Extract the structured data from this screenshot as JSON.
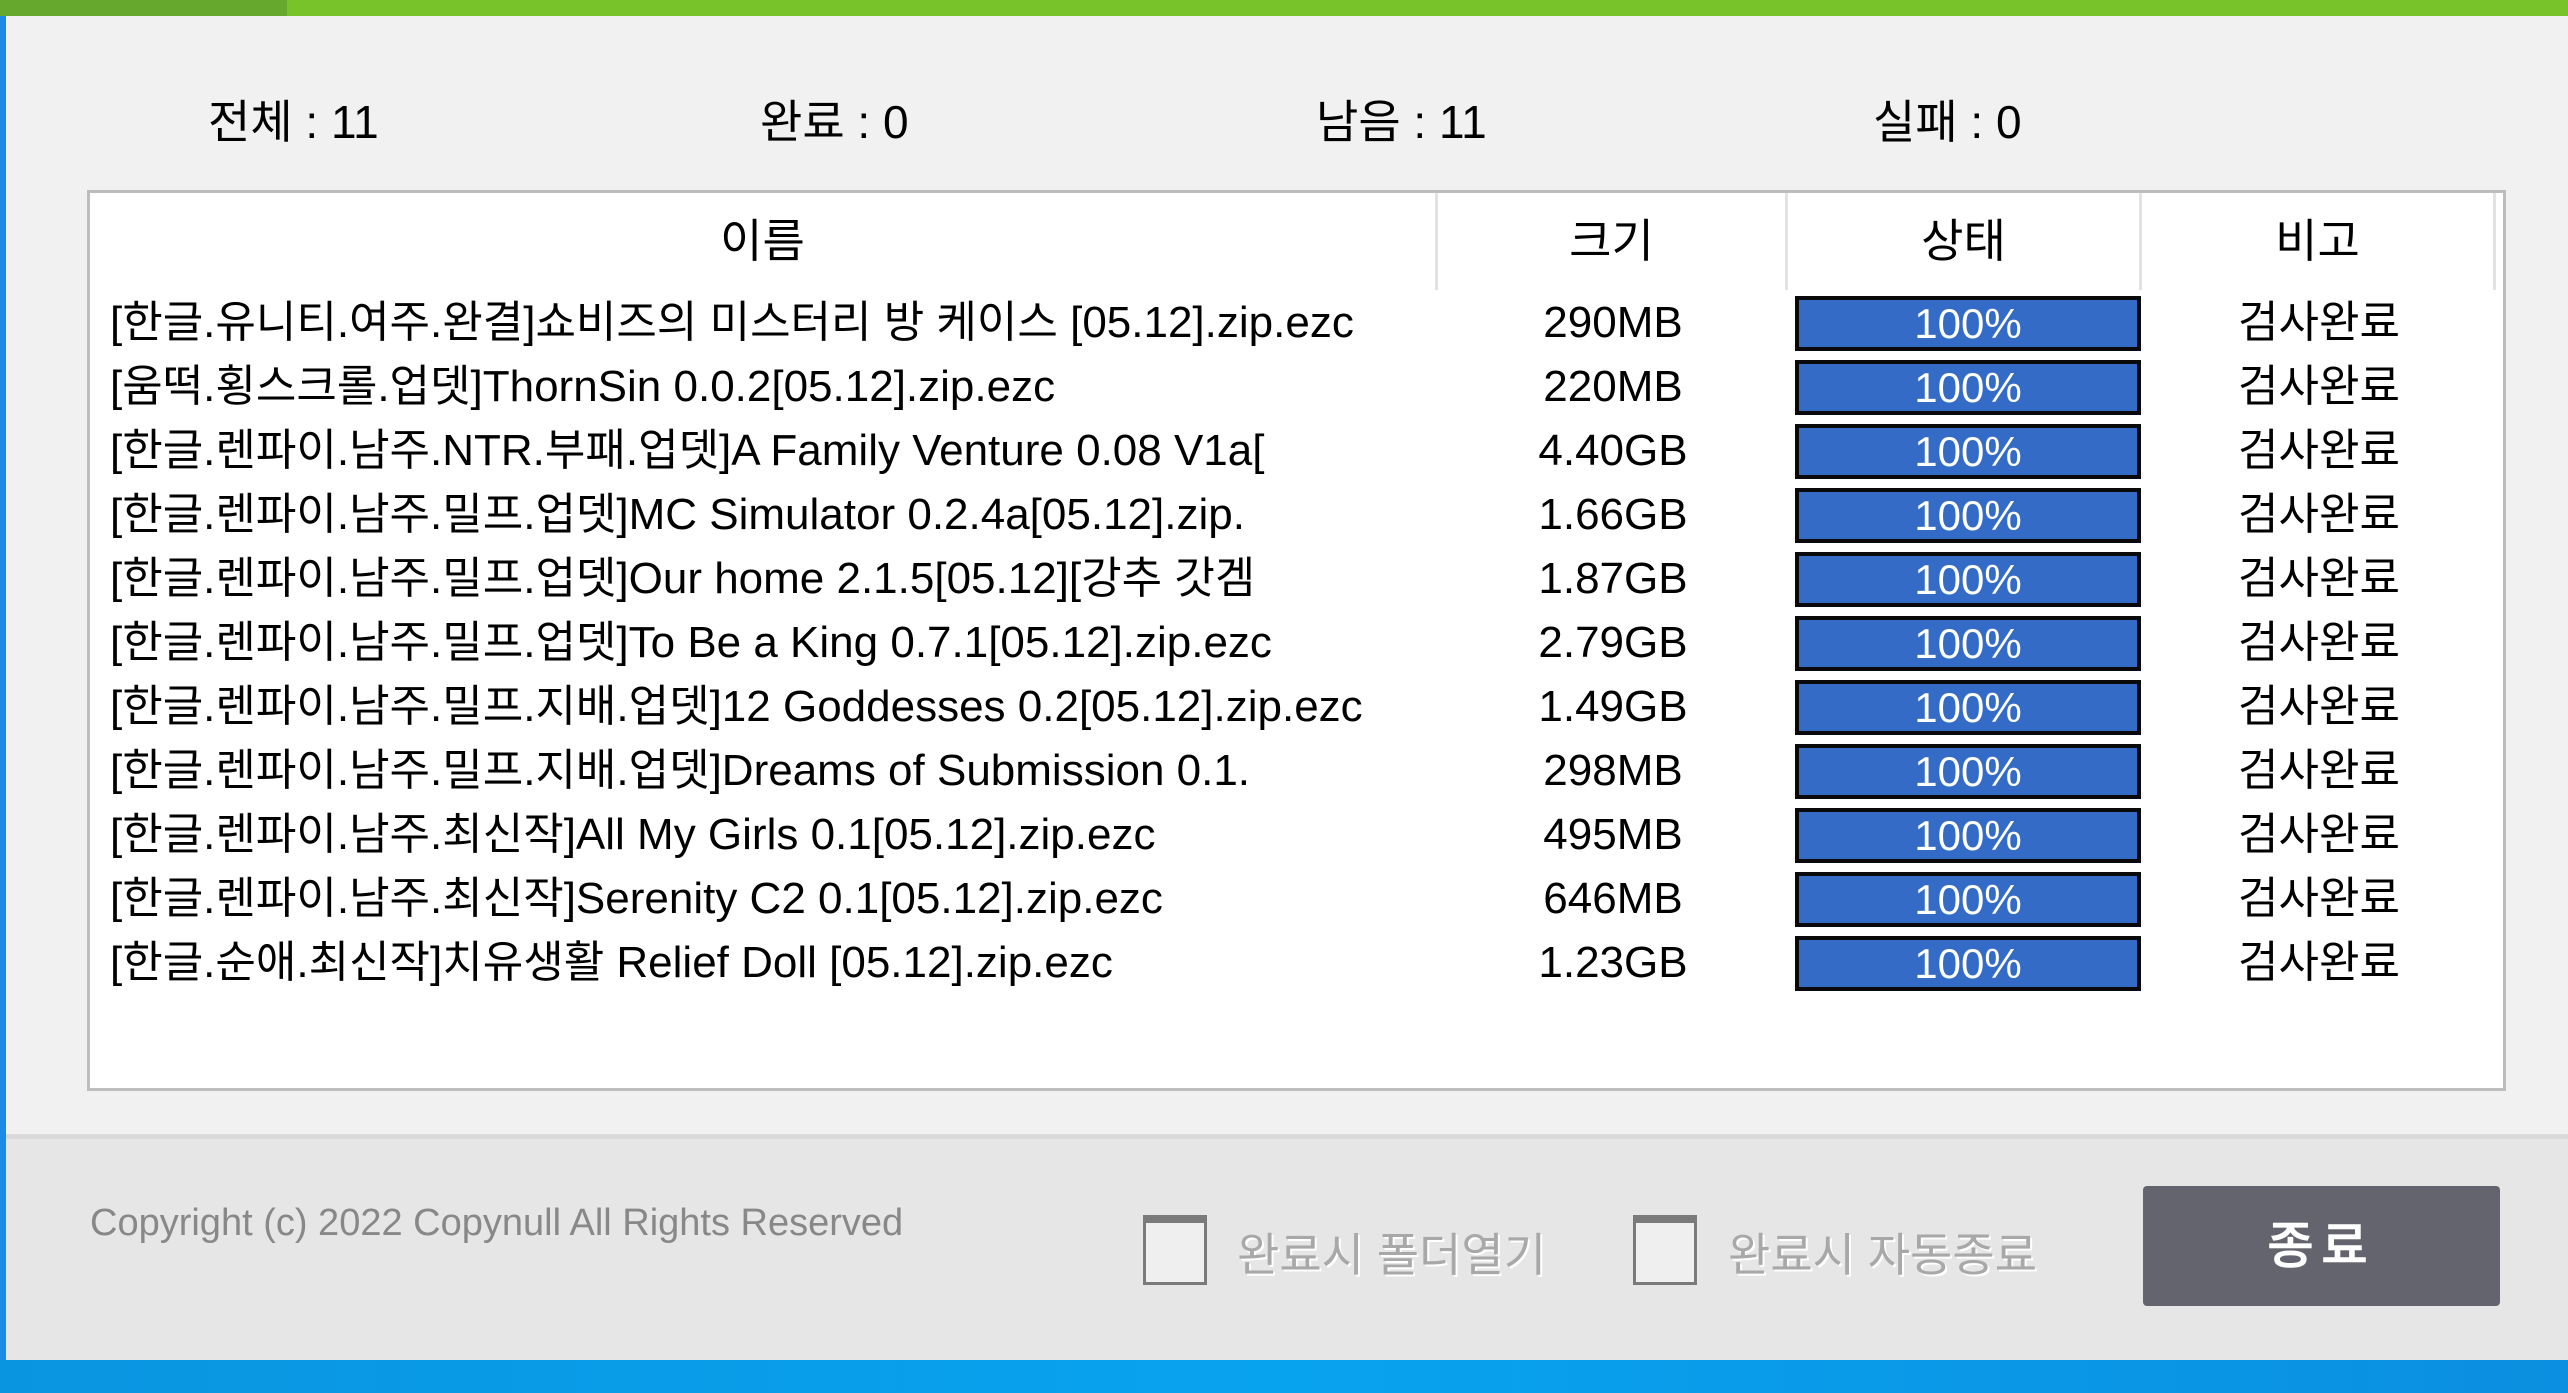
{
  "progress": {
    "overall_percent": 100,
    "accent": "#78c22a"
  },
  "stats": {
    "total": "전체 : 11",
    "done": "완료 : 0",
    "remaining": "남음 : 11",
    "failed": "실패 : 0"
  },
  "table": {
    "columns": [
      "이름",
      "크기",
      "상태",
      "비고"
    ],
    "rows": [
      {
        "name": "[한글.유니티.여주.완결]쇼비즈의 미스터리 방 케이스 [05.12].zip.ezc",
        "size": "290MB",
        "status": "100%",
        "percent": 100,
        "note": "검사완료"
      },
      {
        "name": "[움떡.횡스크롤.업뎃]ThornSin 0.0.2[05.12].zip.ezc",
        "size": "220MB",
        "status": "100%",
        "percent": 100,
        "note": "검사완료"
      },
      {
        "name": "[한글.렌파이.남주.NTR.부패.업뎃]A Family Venture 0.08 V1a[",
        "size": "4.40GB",
        "status": "100%",
        "percent": 100,
        "note": "검사완료"
      },
      {
        "name": "[한글.렌파이.남주.밀프.업뎃]MC Simulator 0.2.4a[05.12].zip.",
        "size": "1.66GB",
        "status": "100%",
        "percent": 100,
        "note": "검사완료"
      },
      {
        "name": "[한글.렌파이.남주.밀프.업뎃]Our home 2.1.5[05.12][강추 갓겜",
        "size": "1.87GB",
        "status": "100%",
        "percent": 100,
        "note": "검사완료"
      },
      {
        "name": "[한글.렌파이.남주.밀프.업뎃]To Be a King 0.7.1[05.12].zip.ezc",
        "size": "2.79GB",
        "status": "100%",
        "percent": 100,
        "note": "검사완료"
      },
      {
        "name": "[한글.렌파이.남주.밀프.지배.업뎃]12 Goddesses 0.2[05.12].zip.ezc",
        "size": "1.49GB",
        "status": "100%",
        "percent": 100,
        "note": "검사완료"
      },
      {
        "name": "[한글.렌파이.남주.밀프.지배.업뎃]Dreams of Submission 0.1.",
        "size": "298MB",
        "status": "100%",
        "percent": 100,
        "note": "검사완료"
      },
      {
        "name": "[한글.렌파이.남주.최신작]All My Girls 0.1[05.12].zip.ezc",
        "size": "495MB",
        "status": "100%",
        "percent": 100,
        "note": "검사완료"
      },
      {
        "name": "[한글.렌파이.남주.최신작]Serenity C2 0.1[05.12].zip.ezc",
        "size": "646MB",
        "status": "100%",
        "percent": 100,
        "note": "검사완료"
      },
      {
        "name": "[한글.순애.최신작]치유생활 Relief Doll [05.12].zip.ezc",
        "size": "1.23GB",
        "status": "100%",
        "percent": 100,
        "note": "검사완료"
      }
    ]
  },
  "footer": {
    "copyright": "Copyright (c) 2022 Copynull All Rights Reserved",
    "open_folder_label": "완료시 폴더열기",
    "open_folder_checked": false,
    "auto_exit_label": "완료시 자동종료",
    "auto_exit_checked": false,
    "exit_label": "종료"
  },
  "colors": {
    "progress_fill": "#336bc6",
    "exit_button": "#64646e"
  }
}
